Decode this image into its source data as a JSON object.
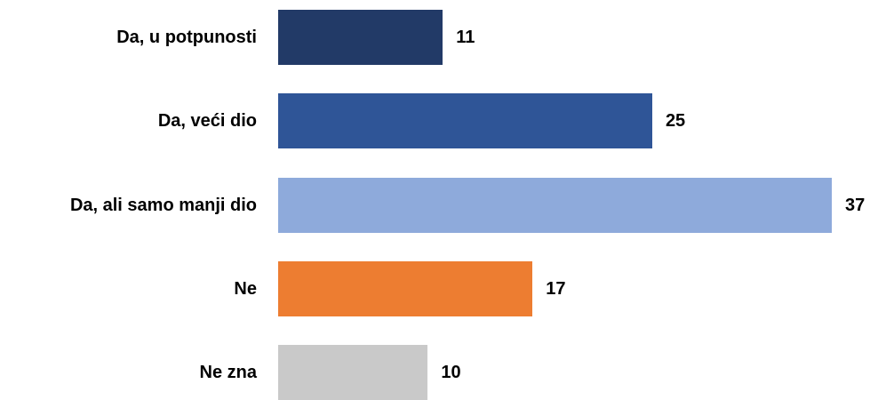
{
  "chart_data": {
    "type": "bar",
    "orientation": "horizontal",
    "categories": [
      "Da, u potpunosti",
      "Da, veći dio",
      "Da, ali samo manji dio",
      "Ne",
      "Ne zna"
    ],
    "values": [
      11,
      25,
      37,
      17,
      10
    ],
    "value_labels": [
      "11",
      "25",
      "37",
      "17",
      "10"
    ],
    "colors": [
      "#223a67",
      "#2f5597",
      "#8eaadb",
      "#ed7d31",
      "#c9c9c9"
    ],
    "xlim": [
      0,
      37
    ],
    "grid": false,
    "legend": "none"
  }
}
